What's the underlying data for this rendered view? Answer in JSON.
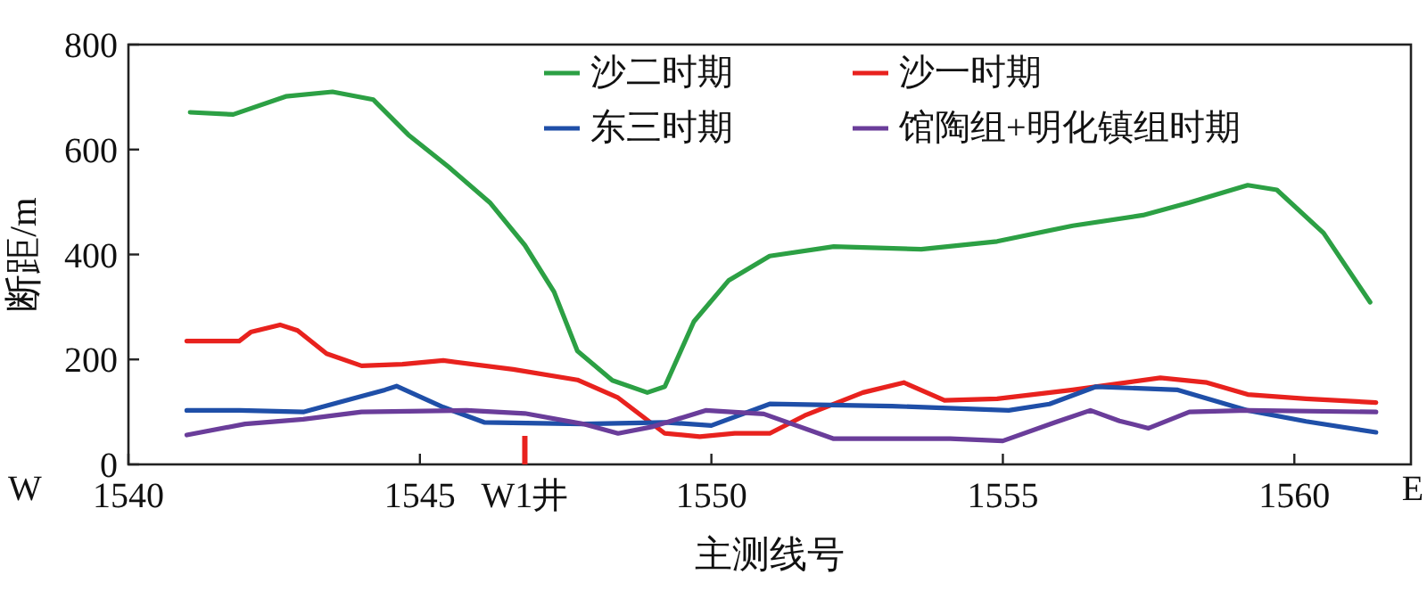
{
  "chart_data": {
    "type": "line",
    "xlabel": "主测线号",
    "ylabel": "断距/m",
    "xlim": [
      1540,
      1562
    ],
    "xticks": [
      1540,
      1545,
      1550,
      1555,
      1560
    ],
    "ylim": [
      0,
      800
    ],
    "yticks": [
      0,
      200,
      400,
      600,
      800
    ],
    "legend": "top right",
    "line_style": "solid",
    "marker": "none",
    "annotations": [
      "W",
      "E"
    ],
    "ref_lines": [
      {
        "axis": "x",
        "value": 1546.8,
        "label": "W1井",
        "color": "#e8221e"
      }
    ],
    "series": [
      {
        "name": "沙二时期",
        "color": "#2ca044",
        "x": [
          1541.06,
          1541.8,
          1542.7,
          1543.5,
          1544.2,
          1544.8,
          1545.5,
          1546.2,
          1546.8,
          1547.3,
          1547.7,
          1548.3,
          1548.9,
          1549.2,
          1549.7,
          1550.3,
          1551.0,
          1552.1,
          1553.6,
          1554.9,
          1556.2,
          1557.4,
          1558.2,
          1559.2,
          1559.7,
          1560.5,
          1561.3
        ],
        "values": [
          671,
          667,
          701,
          710,
          695,
          628,
          566,
          499,
          418,
          329,
          216,
          160,
          137,
          148,
          272,
          351,
          397,
          415,
          410,
          425,
          455,
          475,
          499,
          532,
          523,
          441,
          309
        ]
      },
      {
        "name": "沙一时期",
        "color": "#e8221e",
        "x": [
          1541.0,
          1541.9,
          1542.1,
          1542.6,
          1542.9,
          1543.4,
          1544.0,
          1544.7,
          1545.4,
          1546.6,
          1547.7,
          1548.4,
          1548.8,
          1549.2,
          1549.8,
          1550.4,
          1551.0,
          1551.6,
          1552.6,
          1553.3,
          1554.0,
          1554.9,
          1556.2,
          1557.7,
          1558.5,
          1559.2,
          1560.2,
          1561.4
        ],
        "values": [
          235,
          235,
          252,
          266,
          255,
          211,
          188,
          191,
          198,
          181,
          161,
          127,
          93,
          59,
          53,
          59,
          59,
          93,
          137,
          156,
          122,
          125,
          142,
          165,
          156,
          133,
          125,
          118
        ]
      },
      {
        "name": "东三时期",
        "color": "#1f4fa8",
        "x": [
          1541.0,
          1541.9,
          1543.0,
          1543.9,
          1544.4,
          1544.6,
          1545.4,
          1546.1,
          1547.8,
          1549.2,
          1550.0,
          1551.0,
          1553.1,
          1555.1,
          1555.8,
          1556.6,
          1558.0,
          1559.2,
          1560.2,
          1561.4
        ],
        "values": [
          103,
          103,
          100,
          127,
          142,
          149,
          109,
          80,
          77,
          80,
          74,
          115,
          111,
          103,
          115,
          148,
          142,
          103,
          82,
          61
        ]
      },
      {
        "name": "馆陶组+明化镇组时期",
        "color": "#6a3d9a",
        "x": [
          1541.0,
          1542.0,
          1543.0,
          1544.0,
          1545.8,
          1546.8,
          1547.8,
          1548.4,
          1549.0,
          1549.9,
          1550.9,
          1552.1,
          1554.1,
          1555.0,
          1555.9,
          1556.5,
          1557.0,
          1557.5,
          1558.2,
          1559.2,
          1561.4
        ],
        "values": [
          56,
          77,
          86,
          100,
          103,
          97,
          77,
          59,
          72,
          103,
          96,
          49,
          49,
          45,
          80,
          103,
          83,
          69,
          100,
          103,
          100
        ]
      }
    ]
  }
}
